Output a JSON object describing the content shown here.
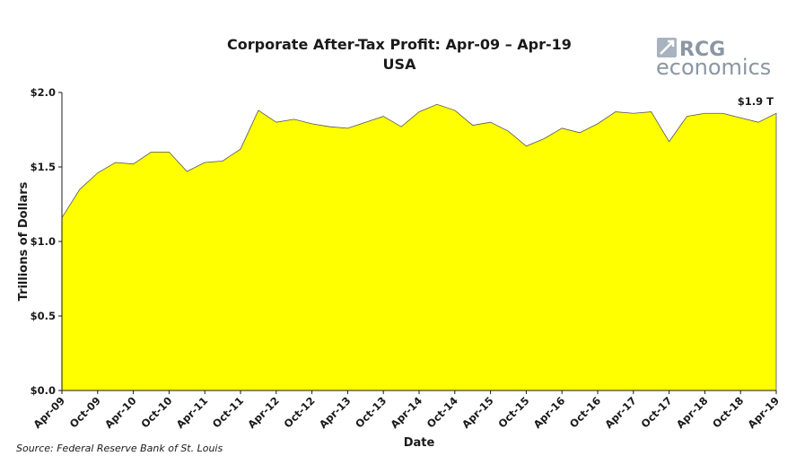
{
  "chart_data": {
    "type": "area",
    "title": "Corporate After-Tax Profit: Apr-09 – Apr-19",
    "subtitle": "USA",
    "xlabel": "Date",
    "ylabel": "Trillions of Dollars",
    "ylim": [
      0,
      2.0
    ],
    "y_ticks": [
      "$0.0",
      "$0.5",
      "$1.0",
      "$1.5",
      "$2.0"
    ],
    "y_tick_values": [
      0,
      0.5,
      1.0,
      1.5,
      2.0
    ],
    "x_tick_labels": [
      "Apr-09",
      "Oct-09",
      "Apr-10",
      "Oct-10",
      "Apr-11",
      "Oct-11",
      "Apr-12",
      "Oct-12",
      "Apr-13",
      "Oct-13",
      "Apr-14",
      "Oct-14",
      "Apr-15",
      "Oct-15",
      "Apr-16",
      "Oct-16",
      "Apr-17",
      "Oct-17",
      "Apr-18",
      "Oct-18",
      "Apr-19"
    ],
    "grid": false,
    "fill_color": "#ffff00",
    "series": [
      {
        "x": [
          "Apr-09",
          "Jul-09",
          "Oct-09",
          "Jan-10",
          "Apr-10",
          "Jul-10",
          "Oct-10",
          "Jan-11",
          "Apr-11",
          "Jul-11",
          "Oct-11",
          "Jan-12",
          "Apr-12",
          "Jul-12",
          "Oct-12",
          "Jan-13",
          "Apr-13",
          "Jul-13",
          "Oct-13",
          "Jan-14",
          "Apr-14",
          "Jul-14",
          "Oct-14",
          "Jan-15",
          "Apr-15",
          "Jul-15",
          "Oct-15",
          "Jan-16",
          "Apr-16",
          "Jul-16",
          "Oct-16",
          "Jan-17",
          "Apr-17",
          "Jul-17",
          "Oct-17",
          "Jan-18",
          "Apr-18",
          "Jul-18",
          "Oct-18",
          "Jan-19",
          "Apr-19"
        ],
        "values": [
          1.16,
          1.35,
          1.46,
          1.53,
          1.52,
          1.6,
          1.6,
          1.47,
          1.53,
          1.54,
          1.62,
          1.88,
          1.8,
          1.82,
          1.79,
          1.77,
          1.76,
          1.8,
          1.84,
          1.77,
          1.87,
          1.92,
          1.88,
          1.78,
          1.8,
          1.74,
          1.64,
          1.69,
          1.76,
          1.73,
          1.79,
          1.87,
          1.86,
          1.87,
          1.67,
          1.84,
          1.86,
          1.86,
          1.83,
          1.8,
          1.86
        ]
      }
    ],
    "annotation": "$1.9 T"
  },
  "source": "Source: Federal Reserve Bank of St. Louis",
  "logo": {
    "top": "RCG",
    "bottom": "economics",
    "color": "#8a96a3"
  }
}
